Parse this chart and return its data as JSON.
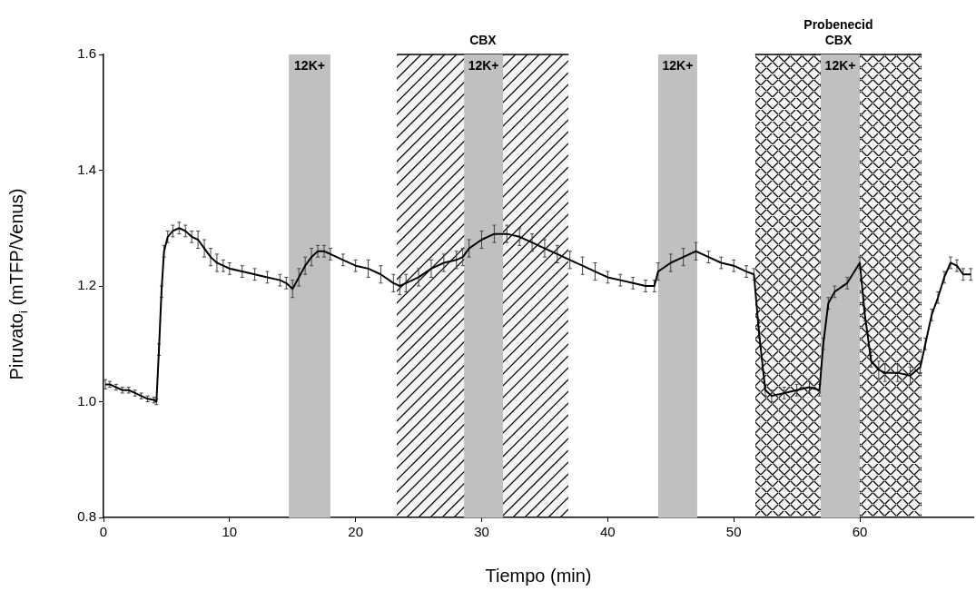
{
  "chart_data": {
    "type": "line",
    "xlabel": "Tiempo (min)",
    "ylabel": "Piruvato$_{i}$ (mTFP/Venus)",
    "xlim": [
      0,
      69
    ],
    "xticks": [
      0,
      10,
      20,
      30,
      40,
      50,
      60
    ],
    "ylim": [
      0.8,
      1.6
    ],
    "yticks": [
      0.8,
      {
        "value": 1,
        "label": "1.0"
      },
      1.2,
      1.4,
      1.6
    ],
    "grid": false,
    "legend": false,
    "series": [
      {
        "color": "#000000",
        "x": [
          0.15,
          0.5,
          1,
          1.5,
          2,
          2.5,
          3,
          3.5,
          4,
          4.2,
          4.4,
          4.6,
          4.8,
          5.1,
          5.5,
          6,
          6.5,
          7,
          7.5,
          8,
          8.5,
          9,
          9.5,
          10,
          11,
          12,
          13,
          14,
          14.5,
          15,
          15.5,
          16,
          16.5,
          17,
          17.5,
          18,
          19,
          20,
          21,
          22,
          23,
          23.5,
          24,
          25,
          26,
          27,
          28,
          28.5,
          29,
          30,
          31,
          32,
          33,
          34,
          35,
          36,
          37,
          38,
          39,
          40,
          41,
          42,
          43,
          43.7,
          44,
          45,
          46,
          47,
          48,
          49,
          50,
          51,
          51.6,
          52,
          52.5,
          53,
          54,
          55,
          56,
          56.8,
          57.1,
          57.5,
          58,
          59,
          60,
          60.4,
          60.9,
          61.5,
          62,
          63,
          64,
          64.8,
          65.2,
          65.7,
          66.2,
          66.7,
          67.2,
          67.7,
          68.2,
          68.8
        ],
        "values": [
          1.03,
          1.03,
          1.025,
          1.02,
          1.02,
          1.015,
          1.01,
          1.005,
          1.003,
          1.0,
          1.09,
          1.19,
          1.26,
          1.285,
          1.295,
          1.3,
          1.295,
          1.285,
          1.28,
          1.265,
          1.25,
          1.24,
          1.235,
          1.23,
          1.225,
          1.22,
          1.215,
          1.21,
          1.205,
          1.195,
          1.215,
          1.235,
          1.25,
          1.26,
          1.26,
          1.255,
          1.245,
          1.235,
          1.23,
          1.22,
          1.205,
          1.2,
          1.205,
          1.215,
          1.23,
          1.24,
          1.245,
          1.25,
          1.265,
          1.28,
          1.29,
          1.29,
          1.285,
          1.275,
          1.265,
          1.255,
          1.245,
          1.235,
          1.225,
          1.215,
          1.21,
          1.205,
          1.2,
          1.2,
          1.225,
          1.24,
          1.25,
          1.26,
          1.25,
          1.24,
          1.235,
          1.225,
          1.22,
          1.12,
          1.02,
          1.01,
          1.015,
          1.02,
          1.025,
          1.02,
          1.1,
          1.17,
          1.19,
          1.205,
          1.24,
          1.15,
          1.07,
          1.055,
          1.05,
          1.05,
          1.045,
          1.06,
          1.1,
          1.15,
          1.18,
          1.215,
          1.24,
          1.235,
          1.22,
          1.22
        ],
        "errors": [
          0.008,
          0.005,
          0.005,
          0.005,
          0.005,
          0.005,
          0.005,
          0.005,
          0.005,
          0.005,
          0.01,
          0.01,
          0.01,
          0.01,
          0.01,
          0.01,
          0.01,
          0.01,
          0.015,
          0.015,
          0.015,
          0.015,
          0.01,
          0.01,
          0.01,
          0.01,
          0.01,
          0.01,
          0.01,
          0.015,
          0.015,
          0.015,
          0.015,
          0.01,
          0.01,
          0.01,
          0.01,
          0.01,
          0.015,
          0.015,
          0.015,
          0.015,
          0.015,
          0.015,
          0.015,
          0.015,
          0.015,
          0.015,
          0.015,
          0.015,
          0.015,
          0.015,
          0.015,
          0.015,
          0.015,
          0.015,
          0.015,
          0.015,
          0.015,
          0.01,
          0.01,
          0.01,
          0.01,
          0.01,
          0.015,
          0.015,
          0.015,
          0.015,
          0.01,
          0.01,
          0.01,
          0.01,
          0.01,
          0.01,
          0.01,
          0.01,
          0.01,
          0.01,
          0.01,
          0.01,
          0.01,
          0.01,
          0.01,
          0.01,
          0.01,
          0.01,
          0.01,
          0.015,
          0.015,
          0.015,
          0.015,
          0.01,
          0.01,
          0.01,
          0.01,
          0.01,
          0.01,
          0.01,
          0.01,
          0.01
        ]
      }
    ],
    "bands": [
      {
        "axis": "x",
        "from": 14.7,
        "to": 18.0,
        "label": "12K+",
        "color": "#c0c0c0"
      },
      {
        "axis": "x",
        "from": 23.3,
        "to": 36.9,
        "label": "CBX",
        "color": "#000000"
      },
      {
        "axis": "x",
        "from": 28.6,
        "to": 31.7,
        "label": "12K+",
        "color": "#c0c0c0"
      },
      {
        "axis": "x",
        "from": 44.0,
        "to": 47.1,
        "label": "12K+",
        "color": "#c0c0c0"
      },
      {
        "axis": "x",
        "from": 51.7,
        "to": 64.9,
        "label": "Probenecid\nCBX",
        "color": "#000000"
      },
      {
        "axis": "x",
        "from": 56.9,
        "to": 60.0,
        "label": "12K+",
        "color": "#c0c0c0"
      }
    ]
  }
}
